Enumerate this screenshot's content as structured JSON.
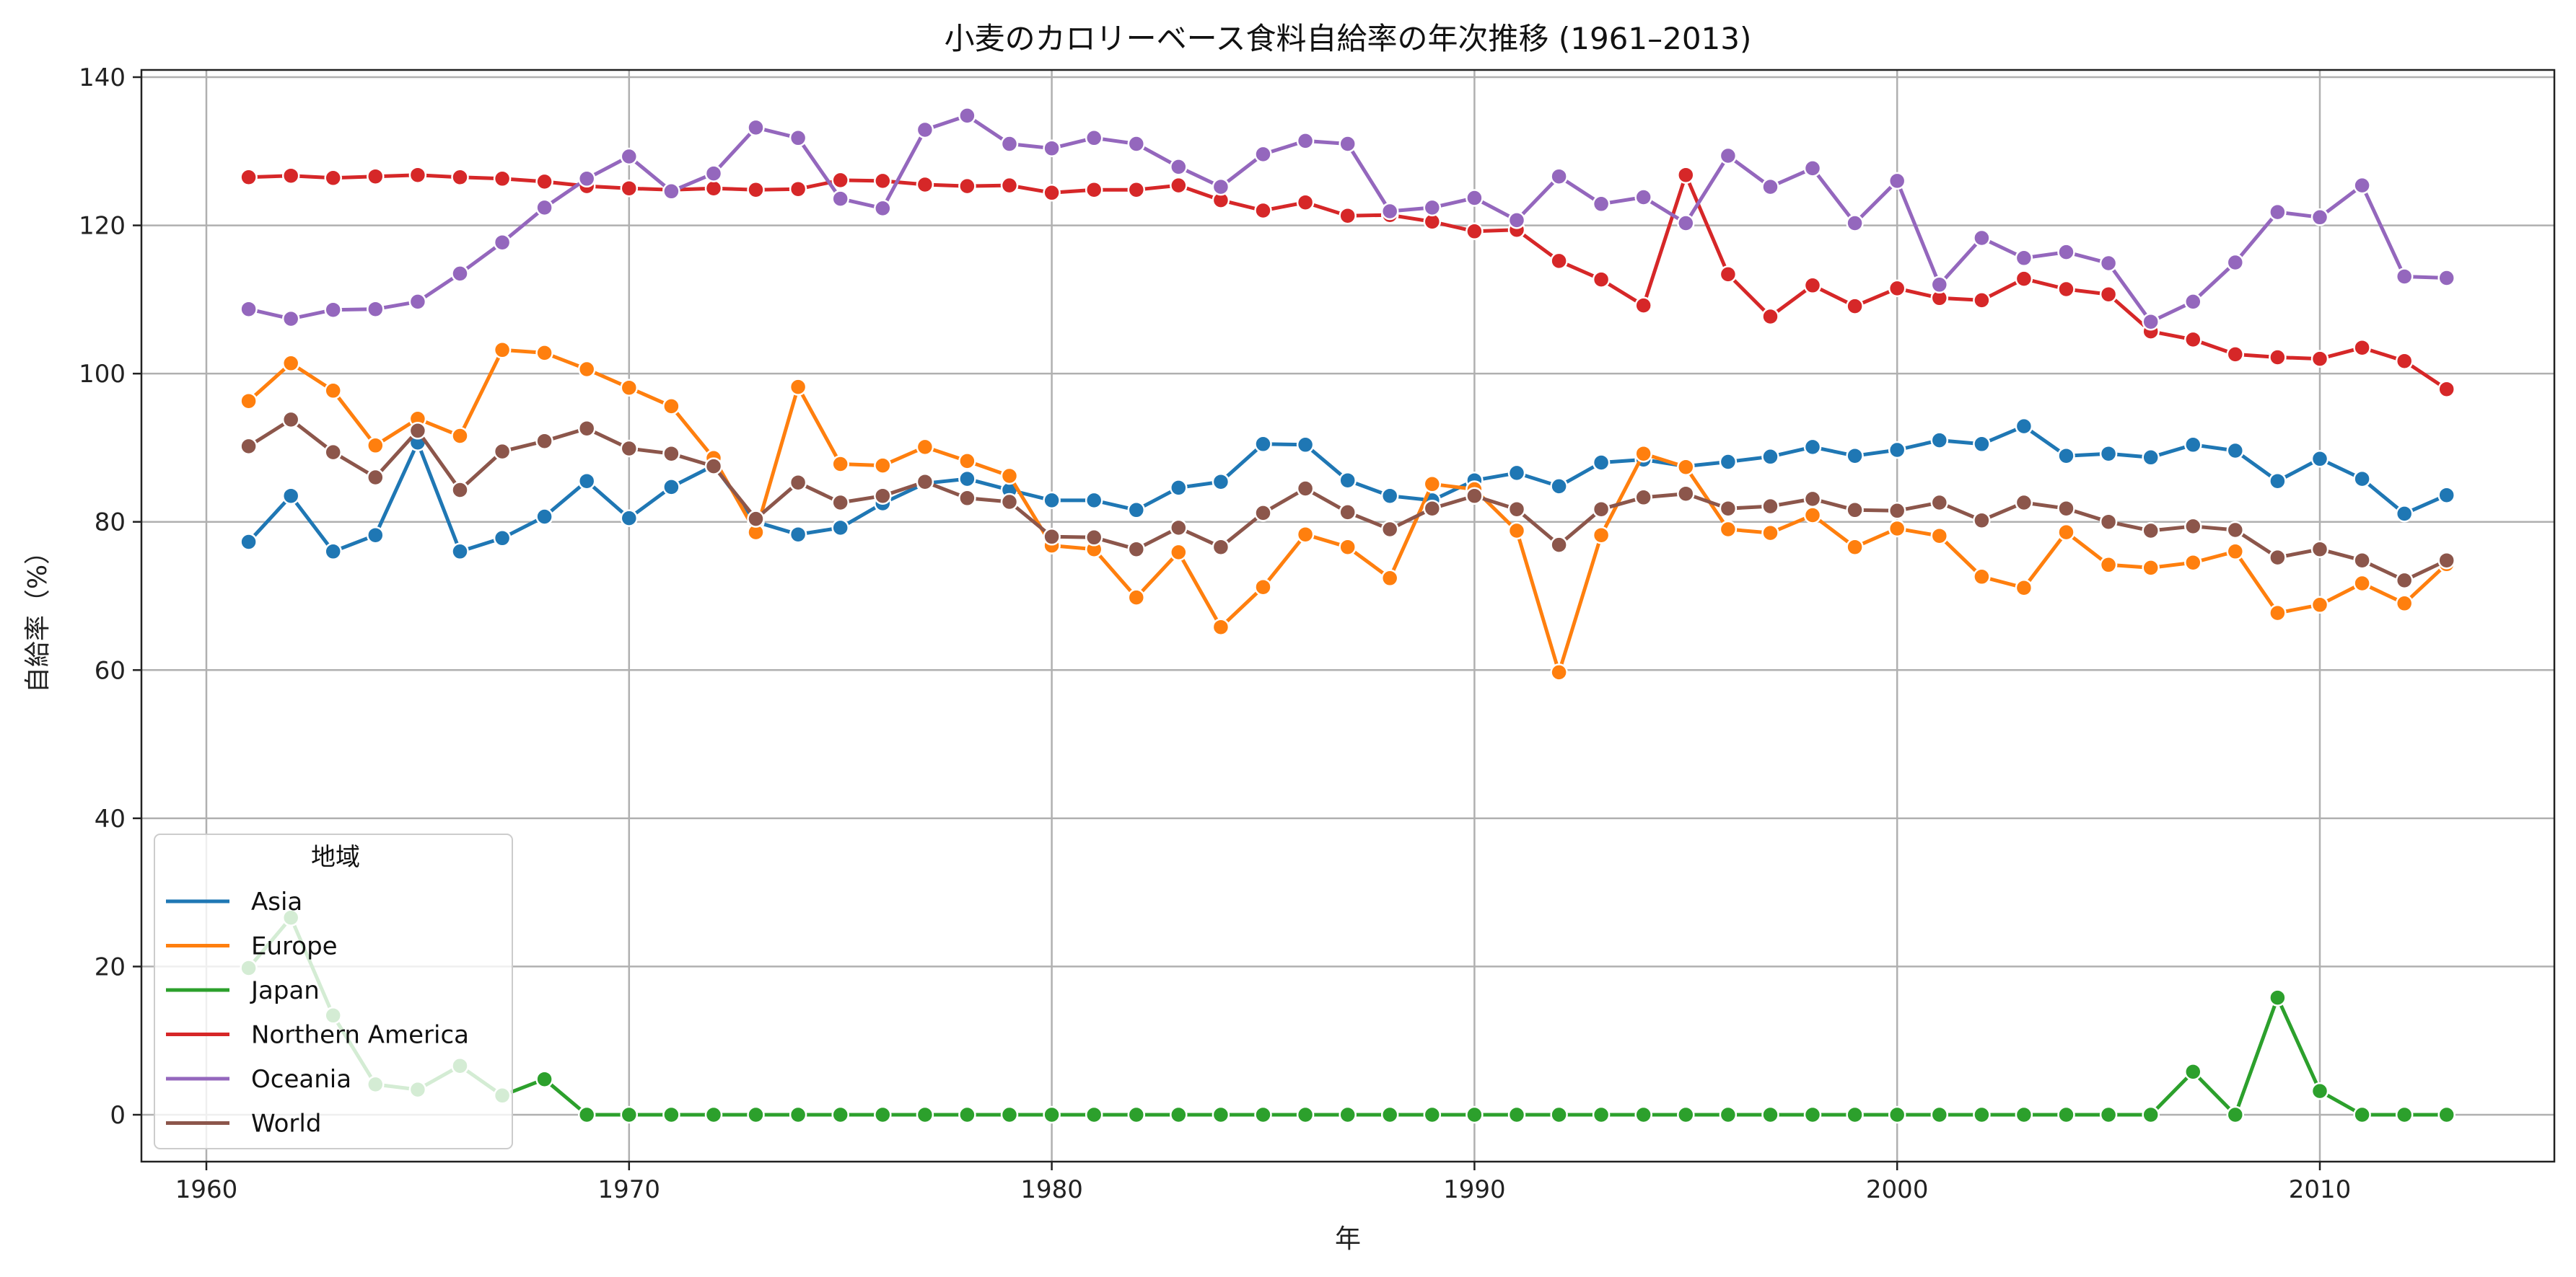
{
  "chart_data": {
    "type": "line",
    "title": "小麦のカロリーベース食料自給率の年次推移 (1961–2013)",
    "xlabel": "年",
    "ylabel": "自給率（%）",
    "xlim": [
      1961,
      2013
    ],
    "ylim": [
      -6,
      142
    ],
    "x_ticks": [
      1960,
      1970,
      1980,
      1990,
      2000,
      2010
    ],
    "y_ticks": [
      0,
      20,
      40,
      60,
      80,
      100,
      120,
      140
    ],
    "grid": true,
    "legend": {
      "title": "地域",
      "placement": "lower-left"
    },
    "x": [
      1961,
      1962,
      1963,
      1964,
      1965,
      1966,
      1967,
      1968,
      1969,
      1970,
      1971,
      1972,
      1973,
      1974,
      1975,
      1976,
      1977,
      1978,
      1979,
      1980,
      1981,
      1982,
      1983,
      1984,
      1985,
      1986,
      1987,
      1988,
      1989,
      1990,
      1991,
      1992,
      1993,
      1994,
      1995,
      1996,
      1997,
      1998,
      1999,
      2000,
      2001,
      2002,
      2003,
      2004,
      2005,
      2006,
      2007,
      2008,
      2009,
      2010,
      2011,
      2012,
      2013
    ],
    "series": [
      {
        "name": "Asia",
        "color": "#1f77b4",
        "values": [
          77.3,
          83.5,
          76.0,
          78.2,
          90.7,
          76.0,
          77.8,
          80.7,
          85.5,
          80.5,
          84.7,
          87.6,
          80.0,
          78.3,
          79.2,
          82.5,
          85.2,
          85.8,
          84.3,
          82.9,
          82.9,
          81.6,
          84.6,
          85.4,
          90.5,
          90.4,
          85.6,
          83.5,
          82.9,
          85.6,
          86.6,
          84.8,
          88.0,
          88.4,
          87.5,
          88.1,
          88.8,
          90.1,
          88.9,
          89.7,
          91.0,
          90.5,
          92.9,
          88.9,
          89.2,
          88.7,
          90.4,
          89.6,
          85.5,
          88.5,
          85.8,
          81.1,
          83.6
        ]
      },
      {
        "name": "Europe",
        "color": "#ff7f0e",
        "values": [
          96.3,
          101.4,
          97.7,
          90.3,
          93.9,
          91.6,
          103.2,
          102.8,
          100.6,
          98.1,
          95.6,
          88.6,
          78.6,
          98.2,
          87.8,
          87.6,
          90.1,
          88.2,
          86.2,
          76.8,
          76.3,
          69.8,
          75.9,
          65.8,
          71.2,
          78.3,
          76.6,
          72.4,
          85.1,
          84.4,
          78.8,
          59.7,
          78.2,
          89.2,
          87.4,
          79.0,
          78.5,
          80.9,
          76.6,
          79.1,
          78.1,
          72.6,
          71.1,
          78.6,
          74.2,
          73.8,
          74.5,
          76.0,
          67.7,
          68.8,
          71.7,
          69.0,
          74.3
        ]
      },
      {
        "name": "Japan",
        "color": "#2ca02c",
        "values": [
          19.8,
          26.6,
          13.4,
          4.1,
          3.4,
          6.6,
          2.6,
          4.8,
          0,
          0,
          0,
          0,
          0,
          0,
          0,
          0,
          0,
          0,
          0,
          0,
          0,
          0,
          0,
          0,
          0,
          0,
          0,
          0,
          0,
          0,
          0,
          0,
          0,
          0,
          0,
          0,
          0,
          0,
          0,
          0,
          0,
          0,
          0,
          0,
          0,
          0,
          5.8,
          0,
          15.8,
          3.2,
          0,
          0,
          0
        ]
      },
      {
        "name": "Northern America",
        "color": "#d62728",
        "values": [
          126.5,
          126.7,
          126.4,
          126.6,
          126.8,
          126.5,
          126.3,
          125.9,
          125.3,
          125.0,
          124.8,
          125.0,
          124.8,
          124.9,
          126.1,
          126.0,
          125.5,
          125.3,
          125.4,
          124.4,
          124.8,
          124.8,
          125.4,
          123.4,
          122.0,
          123.1,
          121.3,
          121.4,
          120.5,
          119.2,
          119.4,
          115.2,
          112.7,
          109.2,
          126.8,
          113.4,
          107.7,
          111.9,
          109.1,
          111.5,
          110.2,
          109.9,
          112.8,
          111.4,
          110.7,
          105.7,
          104.6,
          102.6,
          102.2,
          102.0,
          103.5,
          101.7,
          97.9
        ]
      },
      {
        "name": "Oceania",
        "color": "#9467bd",
        "values": [
          108.7,
          107.4,
          108.6,
          108.7,
          109.7,
          113.5,
          117.7,
          122.4,
          126.3,
          129.3,
          124.6,
          127.0,
          133.2,
          131.8,
          123.6,
          122.3,
          132.9,
          134.8,
          131.0,
          130.4,
          131.8,
          131.0,
          127.9,
          125.2,
          129.6,
          131.4,
          131.0,
          121.9,
          122.4,
          123.7,
          120.7,
          126.6,
          122.9,
          123.8,
          120.3,
          129.4,
          125.2,
          127.7,
          120.3,
          126.0,
          112.0,
          118.3,
          115.6,
          116.4,
          114.9,
          107.0,
          109.7,
          115.0,
          121.8,
          121.1,
          125.4,
          113.1,
          112.9
        ]
      },
      {
        "name": "World",
        "color": "#8c564b",
        "values": [
          90.2,
          93.8,
          89.4,
          86.0,
          92.3,
          84.3,
          89.5,
          90.9,
          92.6,
          89.9,
          89.2,
          87.5,
          80.4,
          85.3,
          82.6,
          83.5,
          85.4,
          83.2,
          82.7,
          78.0,
          77.9,
          76.3,
          79.2,
          76.6,
          81.2,
          84.5,
          81.3,
          79.0,
          81.8,
          83.5,
          81.7,
          76.9,
          81.7,
          83.3,
          83.8,
          81.8,
          82.1,
          83.1,
          81.6,
          81.5,
          82.6,
          80.2,
          82.6,
          81.8,
          80.0,
          78.8,
          79.4,
          78.9,
          75.2,
          76.3,
          74.8,
          72.1,
          74.8
        ]
      }
    ]
  }
}
